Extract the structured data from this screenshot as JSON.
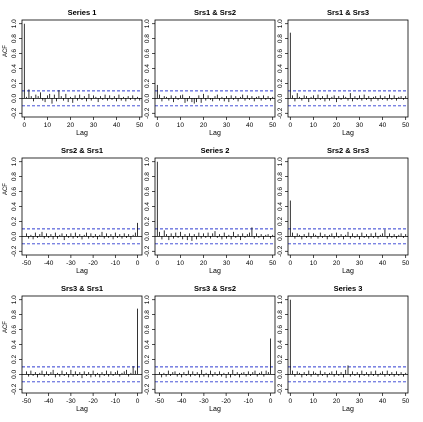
{
  "figure": {
    "background": "#ffffff",
    "colors": {
      "bars": "#000000",
      "confidence_band": "#2f3bd1",
      "frame": "#000000"
    }
  },
  "chart_data": [
    {
      "type": "bar",
      "title": "Series 1",
      "xlabel": "Lag",
      "ylabel": "ACF",
      "xlim": [
        -1,
        51
      ],
      "ylim": [
        -0.25,
        1.05
      ],
      "xticks": [
        0,
        10,
        20,
        30,
        40,
        50
      ],
      "yticks": [
        -0.2,
        0.0,
        0.2,
        0.4,
        0.6,
        0.8,
        1.0
      ],
      "confidence_band": [
        -0.1,
        0.1
      ],
      "lags": [
        0,
        1,
        2,
        3,
        4,
        5,
        6,
        7,
        8,
        9,
        10,
        11,
        12,
        13,
        14,
        15,
        16,
        17,
        18,
        19,
        20,
        21,
        22,
        23,
        24,
        25,
        26,
        27,
        28,
        29,
        30,
        31,
        32,
        33,
        34,
        35,
        36,
        37,
        38,
        39,
        40,
        41,
        42,
        43,
        44,
        45,
        46,
        47,
        48,
        49,
        50
      ],
      "values": [
        1.0,
        0.02,
        0.12,
        0.03,
        -0.04,
        0.05,
        0.03,
        0.08,
        -0.03,
        -0.05,
        0.04,
        0.06,
        -0.07,
        0.05,
        -0.04,
        0.11,
        0.03,
        -0.03,
        0.06,
        -0.05,
        0.02,
        -0.06,
        0.04,
        -0.03,
        0.05,
        -0.02,
        0.03,
        -0.04,
        0.06,
        -0.03,
        0.04,
        0.02,
        -0.05,
        0.03,
        -0.02,
        0.05,
        -0.03,
        0.04,
        -0.02,
        0.03,
        -0.04,
        0.05,
        -0.03,
        0.02,
        -0.04,
        0.03,
        -0.02,
        0.04,
        -0.03,
        0.02,
        -0.03
      ]
    },
    {
      "type": "bar",
      "title": "Srs1 & Srs2",
      "xlabel": "Lag",
      "ylabel": "",
      "xlim": [
        -1,
        51
      ],
      "ylim": [
        -0.25,
        1.05
      ],
      "xticks": [
        0,
        10,
        20,
        30,
        40,
        50
      ],
      "yticks": [
        -0.2,
        0.0,
        0.2,
        0.4,
        0.6,
        0.8,
        1.0
      ],
      "confidence_band": [
        -0.1,
        0.1
      ],
      "lags": [
        0,
        1,
        2,
        3,
        4,
        5,
        6,
        7,
        8,
        9,
        10,
        11,
        12,
        13,
        14,
        15,
        16,
        17,
        18,
        19,
        20,
        21,
        22,
        23,
        24,
        25,
        26,
        27,
        28,
        29,
        30,
        31,
        32,
        33,
        34,
        35,
        36,
        37,
        38,
        39,
        40,
        41,
        42,
        43,
        44,
        45,
        46,
        47,
        48,
        49,
        50
      ],
      "values": [
        0.18,
        0.05,
        -0.04,
        0.03,
        0.02,
        -0.03,
        0.04,
        -0.05,
        0.03,
        -0.02,
        0.04,
        0.05,
        -0.06,
        -0.04,
        0.03,
        -0.05,
        -0.07,
        -0.05,
        0.04,
        -0.06,
        0.06,
        -0.03,
        0.04,
        -0.02,
        -0.04,
        0.03,
        0.05,
        -0.03,
        0.02,
        -0.04,
        0.03,
        -0.05,
        0.04,
        -0.02,
        0.03,
        -0.04,
        0.02,
        0.05,
        -0.03,
        0.04,
        -0.02,
        0.03,
        -0.04,
        0.02,
        0.03,
        -0.03,
        0.04,
        -0.02,
        0.03,
        -0.03,
        0.02
      ]
    },
    {
      "type": "bar",
      "title": "Srs1 & Srs3",
      "xlabel": "Lag",
      "ylabel": "",
      "xlim": [
        -1,
        51
      ],
      "ylim": [
        -0.25,
        1.05
      ],
      "xticks": [
        0,
        10,
        20,
        30,
        40,
        50
      ],
      "yticks": [
        -0.2,
        0.0,
        0.2,
        0.4,
        0.6,
        0.8,
        1.0
      ],
      "confidence_band": [
        -0.1,
        0.1
      ],
      "lags": [
        0,
        1,
        2,
        3,
        4,
        5,
        6,
        7,
        8,
        9,
        10,
        11,
        12,
        13,
        14,
        15,
        16,
        17,
        18,
        19,
        20,
        21,
        22,
        23,
        24,
        25,
        26,
        27,
        28,
        29,
        30,
        31,
        32,
        33,
        34,
        35,
        36,
        37,
        38,
        39,
        40,
        41,
        42,
        43,
        44,
        45,
        46,
        47,
        48,
        49,
        50
      ],
      "values": [
        0.88,
        0.04,
        -0.04,
        0.07,
        0.02,
        -0.03,
        0.04,
        0.03,
        -0.05,
        0.02,
        0.04,
        -0.03,
        0.05,
        -0.02,
        0.03,
        -0.04,
        0.05,
        -0.03,
        0.02,
        0.04,
        -0.05,
        0.03,
        -0.02,
        0.04,
        0.02,
        -0.03,
        0.07,
        -0.04,
        0.03,
        -0.02,
        0.04,
        -0.03,
        0.05,
        -0.02,
        0.03,
        -0.04,
        0.02,
        0.03,
        -0.03,
        0.04,
        -0.02,
        0.03,
        -0.03,
        0.05,
        -0.02,
        0.04,
        -0.03,
        0.02,
        0.03,
        -0.02,
        0.03
      ]
    },
    {
      "type": "bar",
      "title": "Srs2 & Srs1",
      "xlabel": "Lag",
      "ylabel": "ACF",
      "xlim": [
        -52,
        2
      ],
      "ylim": [
        -0.25,
        1.05
      ],
      "xticks": [
        -50,
        -40,
        -30,
        -20,
        -10,
        0
      ],
      "yticks": [
        -0.2,
        0.0,
        0.2,
        0.4,
        0.6,
        0.8,
        1.0
      ],
      "confidence_band": [
        -0.1,
        0.1
      ],
      "lags": [
        -50,
        -49,
        -48,
        -47,
        -46,
        -45,
        -44,
        -43,
        -42,
        -41,
        -40,
        -39,
        -38,
        -37,
        -36,
        -35,
        -34,
        -33,
        -32,
        -31,
        -30,
        -29,
        -28,
        -27,
        -26,
        -25,
        -24,
        -23,
        -22,
        -21,
        -20,
        -19,
        -18,
        -17,
        -16,
        -15,
        -14,
        -13,
        -12,
        -11,
        -10,
        -9,
        -8,
        -7,
        -6,
        -5,
        -4,
        -3,
        -2,
        -1,
        0
      ],
      "values": [
        0.04,
        -0.03,
        0.02,
        -0.04,
        0.05,
        -0.02,
        0.03,
        0.06,
        -0.03,
        0.04,
        -0.02,
        0.03,
        -0.04,
        0.05,
        -0.03,
        0.02,
        0.04,
        -0.05,
        0.03,
        -0.02,
        0.04,
        -0.03,
        0.05,
        -0.02,
        0.03,
        -0.04,
        0.02,
        0.05,
        -0.03,
        0.04,
        -0.02,
        0.03,
        -0.04,
        0.02,
        0.06,
        -0.03,
        0.04,
        -0.02,
        0.03,
        -0.04,
        0.05,
        -0.02,
        0.03,
        -0.03,
        0.04,
        -0.02,
        0.03,
        -0.04,
        0.02,
        0.05,
        0.18
      ]
    },
    {
      "type": "bar",
      "title": "Series 2",
      "xlabel": "Lag",
      "ylabel": "",
      "xlim": [
        -1,
        51
      ],
      "ylim": [
        -0.25,
        1.05
      ],
      "xticks": [
        0,
        10,
        20,
        30,
        40,
        50
      ],
      "yticks": [
        -0.2,
        0.0,
        0.2,
        0.4,
        0.6,
        0.8,
        1.0
      ],
      "confidence_band": [
        -0.1,
        0.1
      ],
      "lags": [
        0,
        1,
        2,
        3,
        4,
        5,
        6,
        7,
        8,
        9,
        10,
        11,
        12,
        13,
        14,
        15,
        16,
        17,
        18,
        19,
        20,
        21,
        22,
        23,
        24,
        25,
        26,
        27,
        28,
        29,
        30,
        31,
        32,
        33,
        34,
        35,
        36,
        37,
        38,
        39,
        40,
        41,
        42,
        43,
        44,
        45,
        46,
        47,
        48,
        49,
        50
      ],
      "values": [
        1.0,
        0.06,
        -0.04,
        0.08,
        0.03,
        -0.05,
        0.04,
        -0.03,
        0.05,
        -0.02,
        0.06,
        -0.04,
        0.03,
        -0.05,
        0.04,
        -0.06,
        0.03,
        -0.04,
        0.05,
        -0.03,
        0.04,
        -0.02,
        0.05,
        -0.03,
        0.04,
        0.07,
        -0.02,
        0.03,
        -0.04,
        0.05,
        -0.03,
        0.02,
        -0.04,
        0.06,
        -0.02,
        0.03,
        -0.05,
        0.04,
        -0.02,
        0.03,
        0.05,
        0.12,
        -0.03,
        0.04,
        -0.02,
        0.03,
        -0.04,
        0.02,
        0.03,
        -0.03,
        0.02
      ]
    },
    {
      "type": "bar",
      "title": "Srs2 & Srs3",
      "xlabel": "Lag",
      "ylabel": "",
      "xlim": [
        -1,
        51
      ],
      "ylim": [
        -0.25,
        1.05
      ],
      "xticks": [
        0,
        10,
        20,
        30,
        40,
        50
      ],
      "yticks": [
        -0.2,
        0.0,
        0.2,
        0.4,
        0.6,
        0.8,
        1.0
      ],
      "confidence_band": [
        -0.1,
        0.1
      ],
      "lags": [
        0,
        1,
        2,
        3,
        4,
        5,
        6,
        7,
        8,
        9,
        10,
        11,
        12,
        13,
        14,
        15,
        16,
        17,
        18,
        19,
        20,
        21,
        22,
        23,
        24,
        25,
        26,
        27,
        28,
        29,
        30,
        31,
        32,
        33,
        34,
        35,
        36,
        37,
        38,
        39,
        40,
        41,
        42,
        43,
        44,
        45,
        46,
        47,
        48,
        49,
        50
      ],
      "values": [
        0.48,
        0.05,
        -0.03,
        0.04,
        0.02,
        -0.04,
        0.03,
        -0.02,
        0.05,
        -0.03,
        0.04,
        0.02,
        -0.03,
        0.05,
        -0.02,
        0.03,
        -0.04,
        0.02,
        0.04,
        -0.03,
        0.05,
        -0.02,
        0.03,
        -0.04,
        0.02,
        0.06,
        -0.03,
        0.04,
        -0.02,
        0.03,
        -0.04,
        0.05,
        -0.02,
        0.03,
        -0.03,
        0.04,
        -0.02,
        0.05,
        -0.03,
        0.02,
        0.04,
        0.09,
        -0.03,
        0.04,
        -0.02,
        0.03,
        -0.03,
        0.02,
        0.04,
        -0.02,
        0.03
      ]
    },
    {
      "type": "bar",
      "title": "Srs3 & Srs1",
      "xlabel": "Lag",
      "ylabel": "ACF",
      "xlim": [
        -52,
        2
      ],
      "ylim": [
        -0.25,
        1.05
      ],
      "xticks": [
        -50,
        -40,
        -30,
        -20,
        -10,
        0
      ],
      "yticks": [
        -0.2,
        0.0,
        0.2,
        0.4,
        0.6,
        0.8,
        1.0
      ],
      "confidence_band": [
        -0.1,
        0.1
      ],
      "lags": [
        -50,
        -49,
        -48,
        -47,
        -46,
        -45,
        -44,
        -43,
        -42,
        -41,
        -40,
        -39,
        -38,
        -37,
        -36,
        -35,
        -34,
        -33,
        -32,
        -31,
        -30,
        -29,
        -28,
        -27,
        -26,
        -25,
        -24,
        -23,
        -22,
        -21,
        -20,
        -19,
        -18,
        -17,
        -16,
        -15,
        -14,
        -13,
        -12,
        -11,
        -10,
        -9,
        -8,
        -7,
        -6,
        -5,
        -4,
        -3,
        -2,
        -1,
        0
      ],
      "values": [
        0.04,
        -0.03,
        0.05,
        -0.02,
        0.03,
        -0.04,
        0.02,
        0.05,
        -0.03,
        0.04,
        -0.02,
        0.03,
        0.06,
        -0.04,
        0.02,
        -0.03,
        0.05,
        -0.02,
        0.03,
        -0.04,
        0.06,
        -0.03,
        0.04,
        -0.02,
        0.03,
        -0.05,
        0.04,
        -0.02,
        0.03,
        -0.04,
        0.05,
        -0.03,
        0.02,
        -0.04,
        0.03,
        -0.02,
        0.05,
        -0.03,
        0.04,
        -0.02,
        0.03,
        0.05,
        -0.03,
        0.02,
        0.04,
        0.06,
        -0.03,
        0.02,
        0.11,
        0.05,
        0.88
      ]
    },
    {
      "type": "bar",
      "title": "Srs3 & Srs2",
      "xlabel": "Lag",
      "ylabel": "",
      "xlim": [
        -52,
        2
      ],
      "ylim": [
        -0.25,
        1.05
      ],
      "xticks": [
        -50,
        -40,
        -30,
        -20,
        -10,
        0
      ],
      "yticks": [
        -0.2,
        0.0,
        0.2,
        0.4,
        0.6,
        0.8,
        1.0
      ],
      "confidence_band": [
        -0.1,
        0.1
      ],
      "lags": [
        -50,
        -49,
        -48,
        -47,
        -46,
        -45,
        -44,
        -43,
        -42,
        -41,
        -40,
        -39,
        -38,
        -37,
        -36,
        -35,
        -34,
        -33,
        -32,
        -31,
        -30,
        -29,
        -28,
        -27,
        -26,
        -25,
        -24,
        -23,
        -22,
        -21,
        -20,
        -19,
        -18,
        -17,
        -16,
        -15,
        -14,
        -13,
        -12,
        -11,
        -10,
        -9,
        -8,
        -7,
        -6,
        -5,
        -4,
        -3,
        -2,
        -1,
        0
      ],
      "values": [
        0.03,
        -0.04,
        0.02,
        -0.03,
        0.05,
        -0.02,
        0.03,
        0.04,
        -0.03,
        0.02,
        -0.04,
        0.03,
        -0.02,
        0.05,
        -0.03,
        0.04,
        -0.02,
        0.03,
        -0.04,
        0.06,
        -0.03,
        0.02,
        -0.04,
        0.05,
        -0.03,
        0.03,
        -0.02,
        0.04,
        -0.03,
        0.02,
        -0.05,
        0.03,
        -0.04,
        0.06,
        -0.02,
        0.03,
        -0.04,
        0.02,
        0.03,
        -0.03,
        0.04,
        -0.02,
        0.03,
        0.05,
        -0.03,
        0.02,
        0.04,
        -0.03,
        0.05,
        0.03,
        0.48
      ]
    },
    {
      "type": "bar",
      "title": "Series 3",
      "xlabel": "Lag",
      "ylabel": "",
      "xlim": [
        -1,
        51
      ],
      "ylim": [
        -0.25,
        1.05
      ],
      "xticks": [
        0,
        10,
        20,
        30,
        40,
        50
      ],
      "yticks": [
        -0.2,
        0.0,
        0.2,
        0.4,
        0.6,
        0.8,
        1.0
      ],
      "confidence_band": [
        -0.1,
        0.1
      ],
      "lags": [
        0,
        1,
        2,
        3,
        4,
        5,
        6,
        7,
        8,
        9,
        10,
        11,
        12,
        13,
        14,
        15,
        16,
        17,
        18,
        19,
        20,
        21,
        22,
        23,
        24,
        25,
        26,
        27,
        28,
        29,
        30,
        31,
        32,
        33,
        34,
        35,
        36,
        37,
        38,
        39,
        40,
        41,
        42,
        43,
        44,
        45,
        46,
        47,
        48,
        49,
        50
      ],
      "values": [
        1.0,
        0.05,
        -0.03,
        0.04,
        0.02,
        -0.04,
        0.03,
        -0.02,
        0.05,
        -0.03,
        0.04,
        0.02,
        -0.03,
        0.05,
        -0.02,
        0.03,
        -0.04,
        0.02,
        0.04,
        -0.03,
        0.05,
        -0.02,
        0.03,
        -0.04,
        0.06,
        0.12,
        -0.03,
        0.04,
        -0.02,
        0.03,
        -0.04,
        0.05,
        -0.02,
        0.03,
        -0.03,
        0.04,
        -0.02,
        0.05,
        -0.03,
        0.02,
        0.04,
        -0.03,
        0.05,
        -0.02,
        0.03,
        -0.03,
        0.04,
        -0.02,
        0.03,
        -0.03,
        0.02
      ]
    }
  ]
}
